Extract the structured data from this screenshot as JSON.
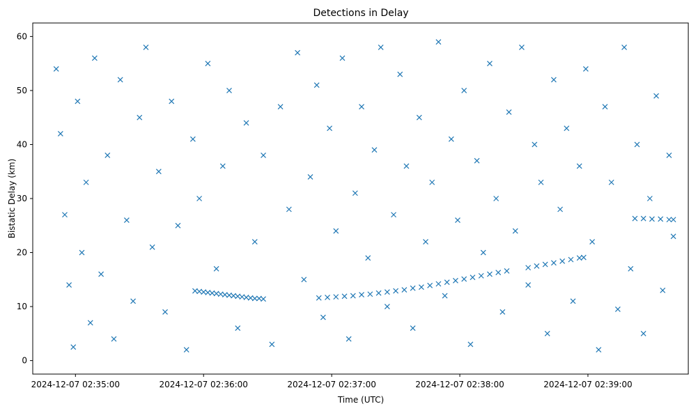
{
  "chart_data": {
    "type": "scatter",
    "title": "Detections in Delay",
    "xlabel": "Time (UTC)",
    "ylabel": "Bistatic Delay (km)",
    "xlim": [
      "2024-12-07 02:34:40",
      "2024-12-07 02:39:47"
    ],
    "ylim": [
      -2.5,
      62.5
    ],
    "xticks": [
      "2024-12-07 02:35:00",
      "2024-12-07 02:36:00",
      "2024-12-07 02:37:00",
      "2024-12-07 02:38:00",
      "2024-12-07 02:39:00"
    ],
    "yticks": [
      0,
      10,
      20,
      30,
      40,
      50,
      60
    ],
    "grid": false,
    "marker": "x",
    "color": "#1f77b4",
    "series": [
      {
        "points": [
          [
            "2024-12-07 02:35:56",
            12.9
          ],
          [
            "2024-12-07 02:35:58",
            12.8
          ],
          [
            "2024-12-07 02:36:00",
            12.7
          ],
          [
            "2024-12-07 02:36:02",
            12.6
          ],
          [
            "2024-12-07 02:36:04",
            12.5
          ],
          [
            "2024-12-07 02:36:06",
            12.4
          ],
          [
            "2024-12-07 02:36:08",
            12.3
          ],
          [
            "2024-12-07 02:36:10",
            12.2
          ],
          [
            "2024-12-07 02:36:12",
            12.1
          ],
          [
            "2024-12-07 02:36:14",
            12.0
          ],
          [
            "2024-12-07 02:36:16",
            11.9
          ],
          [
            "2024-12-07 02:36:18",
            11.8
          ],
          [
            "2024-12-07 02:36:20",
            11.7
          ],
          [
            "2024-12-07 02:36:22",
            11.6
          ],
          [
            "2024-12-07 02:36:24",
            11.5
          ],
          [
            "2024-12-07 02:36:26",
            11.5
          ],
          [
            "2024-12-07 02:36:28",
            11.4
          ],
          [
            "2024-12-07 02:36:54",
            11.6
          ],
          [
            "2024-12-07 02:36:58",
            11.7
          ],
          [
            "2024-12-07 02:37:02",
            11.8
          ],
          [
            "2024-12-07 02:37:06",
            11.9
          ],
          [
            "2024-12-07 02:37:10",
            12.0
          ],
          [
            "2024-12-07 02:37:14",
            12.2
          ],
          [
            "2024-12-07 02:37:18",
            12.3
          ],
          [
            "2024-12-07 02:37:22",
            12.5
          ],
          [
            "2024-12-07 02:37:26",
            12.7
          ],
          [
            "2024-12-07 02:37:30",
            12.9
          ],
          [
            "2024-12-07 02:37:34",
            13.1
          ],
          [
            "2024-12-07 02:37:38",
            13.4
          ],
          [
            "2024-12-07 02:37:42",
            13.6
          ],
          [
            "2024-12-07 02:37:46",
            13.9
          ],
          [
            "2024-12-07 02:37:50",
            14.2
          ],
          [
            "2024-12-07 02:37:54",
            14.5
          ],
          [
            "2024-12-07 02:37:58",
            14.8
          ],
          [
            "2024-12-07 02:38:02",
            15.1
          ],
          [
            "2024-12-07 02:38:06",
            15.4
          ],
          [
            "2024-12-07 02:38:10",
            15.7
          ],
          [
            "2024-12-07 02:38:14",
            16.0
          ],
          [
            "2024-12-07 02:38:18",
            16.3
          ],
          [
            "2024-12-07 02:38:22",
            16.6
          ],
          [
            "2024-12-07 02:38:32",
            17.2
          ],
          [
            "2024-12-07 02:38:36",
            17.5
          ],
          [
            "2024-12-07 02:38:40",
            17.8
          ],
          [
            "2024-12-07 02:38:44",
            18.1
          ],
          [
            "2024-12-07 02:38:48",
            18.4
          ],
          [
            "2024-12-07 02:38:52",
            18.7
          ],
          [
            "2024-12-07 02:38:56",
            19.0
          ],
          [
            "2024-12-07 02:38:58",
            19.1
          ],
          [
            "2024-12-07 02:39:22",
            26.3
          ],
          [
            "2024-12-07 02:39:26",
            26.3
          ],
          [
            "2024-12-07 02:39:30",
            26.2
          ],
          [
            "2024-12-07 02:39:34",
            26.2
          ],
          [
            "2024-12-07 02:39:38",
            26.1
          ],
          [
            "2024-12-07 02:39:40",
            26.1
          ],
          [
            "2024-12-07 02:34:51",
            54.0
          ],
          [
            "2024-12-07 02:34:53",
            42.0
          ],
          [
            "2024-12-07 02:34:55",
            27.0
          ],
          [
            "2024-12-07 02:34:57",
            14.0
          ],
          [
            "2024-12-07 02:34:59",
            2.5
          ],
          [
            "2024-12-07 02:35:01",
            48.0
          ],
          [
            "2024-12-07 02:35:03",
            20.0
          ],
          [
            "2024-12-07 02:35:05",
            33.0
          ],
          [
            "2024-12-07 02:35:07",
            7.0
          ],
          [
            "2024-12-07 02:35:09",
            56.0
          ],
          [
            "2024-12-07 02:35:12",
            16.0
          ],
          [
            "2024-12-07 02:35:15",
            38.0
          ],
          [
            "2024-12-07 02:35:18",
            4.0
          ],
          [
            "2024-12-07 02:35:21",
            52.0
          ],
          [
            "2024-12-07 02:35:24",
            26.0
          ],
          [
            "2024-12-07 02:35:27",
            11.0
          ],
          [
            "2024-12-07 02:35:30",
            45.0
          ],
          [
            "2024-12-07 02:35:33",
            58.0
          ],
          [
            "2024-12-07 02:35:36",
            21.0
          ],
          [
            "2024-12-07 02:35:39",
            35.0
          ],
          [
            "2024-12-07 02:35:42",
            9.0
          ],
          [
            "2024-12-07 02:35:45",
            48.0
          ],
          [
            "2024-12-07 02:35:48",
            25.0
          ],
          [
            "2024-12-07 02:35:52",
            2.0
          ],
          [
            "2024-12-07 02:35:55",
            41.0
          ],
          [
            "2024-12-07 02:35:58",
            30.0
          ],
          [
            "2024-12-07 02:36:02",
            55.0
          ],
          [
            "2024-12-07 02:36:06",
            17.0
          ],
          [
            "2024-12-07 02:36:09",
            36.0
          ],
          [
            "2024-12-07 02:36:12",
            50.0
          ],
          [
            "2024-12-07 02:36:16",
            6.0
          ],
          [
            "2024-12-07 02:36:20",
            44.0
          ],
          [
            "2024-12-07 02:36:24",
            22.0
          ],
          [
            "2024-12-07 02:36:28",
            38.0
          ],
          [
            "2024-12-07 02:36:32",
            3.0
          ],
          [
            "2024-12-07 02:36:36",
            47.0
          ],
          [
            "2024-12-07 02:36:40",
            28.0
          ],
          [
            "2024-12-07 02:36:44",
            57.0
          ],
          [
            "2024-12-07 02:36:47",
            15.0
          ],
          [
            "2024-12-07 02:36:50",
            34.0
          ],
          [
            "2024-12-07 02:36:53",
            51.0
          ],
          [
            "2024-12-07 02:36:56",
            8.0
          ],
          [
            "2024-12-07 02:36:59",
            43.0
          ],
          [
            "2024-12-07 02:37:02",
            24.0
          ],
          [
            "2024-12-07 02:37:05",
            56.0
          ],
          [
            "2024-12-07 02:37:08",
            4.0
          ],
          [
            "2024-12-07 02:37:11",
            31.0
          ],
          [
            "2024-12-07 02:37:14",
            47.0
          ],
          [
            "2024-12-07 02:37:17",
            19.0
          ],
          [
            "2024-12-07 02:37:20",
            39.0
          ],
          [
            "2024-12-07 02:37:23",
            58.0
          ],
          [
            "2024-12-07 02:37:26",
            10.0
          ],
          [
            "2024-12-07 02:37:29",
            27.0
          ],
          [
            "2024-12-07 02:37:32",
            53.0
          ],
          [
            "2024-12-07 02:37:35",
            36.0
          ],
          [
            "2024-12-07 02:37:38",
            6.0
          ],
          [
            "2024-12-07 02:37:41",
            45.0
          ],
          [
            "2024-12-07 02:37:44",
            22.0
          ],
          [
            "2024-12-07 02:37:47",
            33.0
          ],
          [
            "2024-12-07 02:37:50",
            59.0
          ],
          [
            "2024-12-07 02:37:53",
            12.0
          ],
          [
            "2024-12-07 02:37:56",
            41.0
          ],
          [
            "2024-12-07 02:37:59",
            26.0
          ],
          [
            "2024-12-07 02:38:02",
            50.0
          ],
          [
            "2024-12-07 02:38:05",
            3.0
          ],
          [
            "2024-12-07 02:38:08",
            37.0
          ],
          [
            "2024-12-07 02:38:11",
            20.0
          ],
          [
            "2024-12-07 02:38:14",
            55.0
          ],
          [
            "2024-12-07 02:38:17",
            30.0
          ],
          [
            "2024-12-07 02:38:20",
            9.0
          ],
          [
            "2024-12-07 02:38:23",
            46.0
          ],
          [
            "2024-12-07 02:38:26",
            24.0
          ],
          [
            "2024-12-07 02:38:29",
            58.0
          ],
          [
            "2024-12-07 02:38:32",
            14.0
          ],
          [
            "2024-12-07 02:38:35",
            40.0
          ],
          [
            "2024-12-07 02:38:38",
            33.0
          ],
          [
            "2024-12-07 02:38:41",
            5.0
          ],
          [
            "2024-12-07 02:38:44",
            52.0
          ],
          [
            "2024-12-07 02:38:47",
            28.0
          ],
          [
            "2024-12-07 02:38:50",
            43.0
          ],
          [
            "2024-12-07 02:38:53",
            11.0
          ],
          [
            "2024-12-07 02:38:56",
            36.0
          ],
          [
            "2024-12-07 02:38:59",
            54.0
          ],
          [
            "2024-12-07 02:39:02",
            22.0
          ],
          [
            "2024-12-07 02:39:05",
            2.0
          ],
          [
            "2024-12-07 02:39:08",
            47.0
          ],
          [
            "2024-12-07 02:39:11",
            33.0
          ],
          [
            "2024-12-07 02:39:14",
            9.5
          ],
          [
            "2024-12-07 02:39:17",
            58.0
          ],
          [
            "2024-12-07 02:39:20",
            17.0
          ],
          [
            "2024-12-07 02:39:23",
            40.0
          ],
          [
            "2024-12-07 02:39:26",
            5.0
          ],
          [
            "2024-12-07 02:39:29",
            30.0
          ],
          [
            "2024-12-07 02:39:32",
            49.0
          ],
          [
            "2024-12-07 02:39:35",
            13.0
          ],
          [
            "2024-12-07 02:39:38",
            38.0
          ],
          [
            "2024-12-07 02:39:40",
            23.0
          ]
        ]
      }
    ]
  }
}
